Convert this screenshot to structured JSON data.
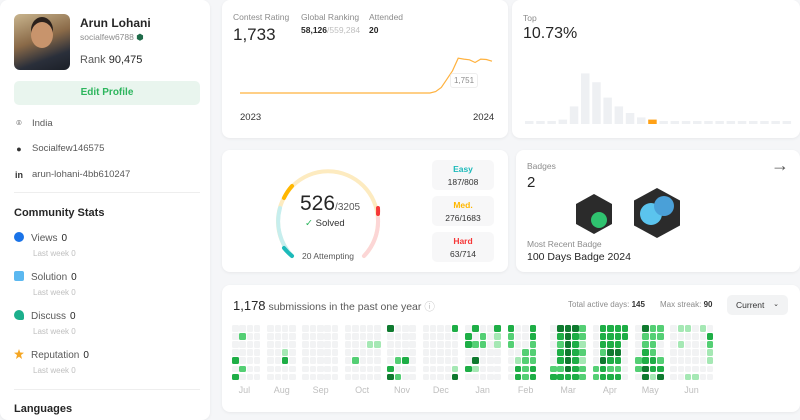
{
  "profile": {
    "name": "Arun Lohani",
    "username": "socialfew6788",
    "rank_label": "Rank",
    "rank": "90,475",
    "edit_label": "Edit Profile",
    "location": "India",
    "github": "Socialfew146575",
    "linkedin": "arun-lohani-4bb610247"
  },
  "community": {
    "title": "Community Stats",
    "items": [
      {
        "label": "Views",
        "value": "0",
        "last_week_label": "Last week",
        "last_week": "0",
        "icon": "eye-icon",
        "color": "#1a73e8"
      },
      {
        "label": "Solution",
        "value": "0",
        "last_week_label": "Last week",
        "last_week": "0",
        "icon": "solution-icon",
        "color": "#5bb8f0"
      },
      {
        "label": "Discuss",
        "value": "0",
        "last_week_label": "Last week",
        "last_week": "0",
        "icon": "discuss-icon",
        "color": "#1caf8c"
      },
      {
        "label": "Reputation",
        "value": "0",
        "last_week_label": "Last week",
        "last_week": "0",
        "icon": "star-icon",
        "color": "#f5a623"
      }
    ]
  },
  "languages_title": "Languages",
  "contest": {
    "rating_label": "Contest Rating",
    "rating": "1,733",
    "global_label": "Global Ranking",
    "global_rank": "58,126",
    "global_total": "/559,284",
    "attended_label": "Attended",
    "attended": "20",
    "tooltip": "1,751",
    "x_start": "2023",
    "x_end": "2024",
    "ratings": [
      1500,
      1500,
      1500,
      1500,
      1500,
      1500,
      1500,
      1500,
      1500,
      1500,
      1500,
      1500,
      1500,
      1500,
      1510,
      1540,
      1600,
      1660,
      1751,
      1745,
      1740,
      1720,
      1745,
      1742,
      1730
    ]
  },
  "top": {
    "label": "Top",
    "value": "10.73%",
    "histogram": [
      1,
      1,
      1,
      2,
      8,
      23,
      19,
      12,
      8,
      5,
      3,
      2,
      1,
      1,
      1,
      1,
      1,
      1,
      1,
      1,
      1,
      1,
      1,
      1
    ],
    "highlight_index": 11,
    "color": "#ffa116"
  },
  "solved": {
    "solved": "526",
    "total": "/3205",
    "solved_label": "Solved",
    "attempting": "20 Attempting",
    "easy_label": "Easy",
    "easy": "187/808",
    "easy_color": "#1cbaba",
    "med_label": "Med.",
    "med": "276/1683",
    "med_color": "#ffb700",
    "hard_label": "Hard",
    "hard": "63/714",
    "hard_color": "#f63737"
  },
  "badges": {
    "label": "Badges",
    "count": "2",
    "recent_label": "Most Recent Badge",
    "recent": "100 Days Badge 2024"
  },
  "submissions": {
    "count": "1,178",
    "text": "submissions in the past one year",
    "active_label": "Total active days:",
    "active": "145",
    "streak_label": "Max streak:",
    "streak": "90",
    "period": "Current",
    "months": [
      {
        "name": "Jul",
        "weeks": [
          "0000303",
          "0200020",
          "0000000",
          "0000000"
        ]
      },
      {
        "name": "Aug",
        "weeks": [
          "0000000",
          "0000000",
          "0001300",
          "0000000"
        ]
      },
      {
        "name": "Sep",
        "weeks": [
          "0000000",
          "0000000",
          "0000000",
          "0000000",
          "0000000"
        ]
      },
      {
        "name": "Oct",
        "weeks": [
          "0000000",
          "0000200",
          "0000000",
          "0010000",
          "0010000"
        ]
      },
      {
        "name": "Nov",
        "weeks": [
          "4000034",
          "0000202",
          "0000300",
          "0000000"
        ]
      },
      {
        "name": "Dec",
        "weeks": [
          "0000000",
          "0000000",
          "0000000",
          "0000000",
          "3000014"
        ]
      },
      {
        "name": "Jan",
        "weeks": [
          "0330030",
          "3020410",
          "0220000",
          "0000000",
          "3110000"
        ]
      },
      {
        "name": "Feb",
        "weeks": [
          "3220000",
          "0000133",
          "0002222",
          "3322233",
          "..."
        ]
      },
      {
        "name": "Mar",
        "weeks": [
          "0000023",
          "4323323",
          "4444443",
          "4333333",
          "2212122"
        ]
      },
      {
        "name": "Apr",
        "weeks": [
          "0000022",
          "3332433",
          "3334323",
          "3334323",
          "3300000"
        ]
      },
      {
        "name": "May",
        "weeks": [
          "0000220",
          "4223344",
          "2222331",
          "2200234"
        ]
      },
      {
        "name": "Jun",
        "weeks": [
          "0000000",
          "1010000",
          "1000001",
          "0000001",
          "1000000",
          "0321100"
        ]
      }
    ]
  }
}
